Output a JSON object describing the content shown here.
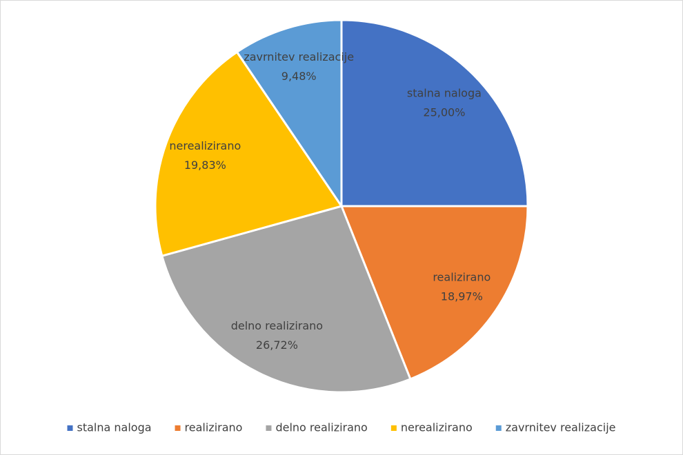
{
  "chart_data": {
    "type": "pie",
    "categories": [
      "stalna naloga",
      "realizirano",
      "delno realizirano",
      "nerealizirano",
      "zavrnitev realizacije"
    ],
    "values": [
      25.0,
      18.97,
      26.72,
      19.83,
      9.48
    ],
    "value_labels": [
      "25,00%",
      "18,97%",
      "26,72%",
      "19,83%",
      "9,48%"
    ],
    "colors": [
      "#4472c4",
      "#ed7d31",
      "#a5a5a5",
      "#ffc000",
      "#5b9bd5"
    ],
    "legend": "bottom"
  }
}
